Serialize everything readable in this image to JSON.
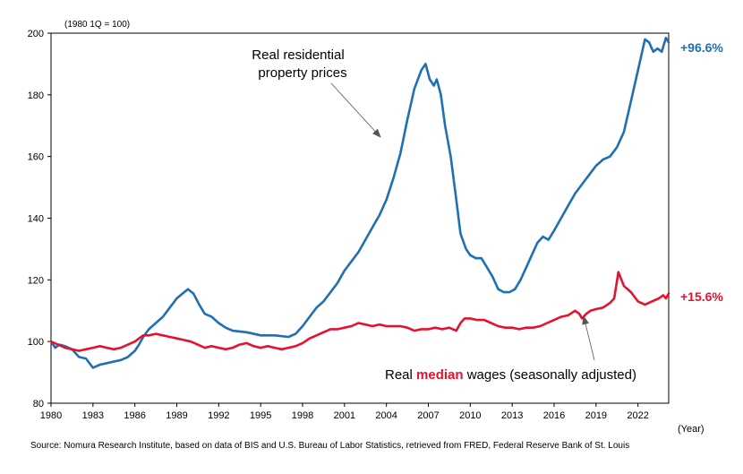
{
  "chart_data": {
    "type": "line",
    "unit_label": "(1980 1Q = 100)",
    "xlabel": "(Year)",
    "xlim": [
      1980,
      2024.2
    ],
    "ylim": [
      80,
      200
    ],
    "yticks": [
      80,
      100,
      120,
      140,
      160,
      180,
      200
    ],
    "xticks": [
      1980,
      1983,
      1986,
      1989,
      1992,
      1995,
      1998,
      2001,
      2004,
      2007,
      2010,
      2013,
      2016,
      2019,
      2022
    ],
    "series": [
      {
        "name": "Real residential property prices",
        "color": "#1f6fb5",
        "end_label": "+96.6%",
        "points": [
          [
            1980,
            100
          ],
          [
            1980.3,
            98
          ],
          [
            1980.6,
            99
          ],
          [
            1981,
            98.5
          ],
          [
            1981.5,
            97.5
          ],
          [
            1982,
            95
          ],
          [
            1982.5,
            94.5
          ],
          [
            1983,
            91.5
          ],
          [
            1983.5,
            92.5
          ],
          [
            1984,
            93
          ],
          [
            1984.5,
            93.5
          ],
          [
            1985,
            94
          ],
          [
            1985.5,
            95
          ],
          [
            1986,
            97
          ],
          [
            1986.3,
            99
          ],
          [
            1986.6,
            101.5
          ],
          [
            1987,
            104
          ],
          [
            1987.5,
            106
          ],
          [
            1988,
            108
          ],
          [
            1988.5,
            111
          ],
          [
            1989,
            114
          ],
          [
            1989.4,
            115.5
          ],
          [
            1989.8,
            117
          ],
          [
            1990.2,
            115.5
          ],
          [
            1990.6,
            112
          ],
          [
            1991,
            109
          ],
          [
            1991.5,
            108
          ],
          [
            1992,
            106
          ],
          [
            1992.5,
            104.5
          ],
          [
            1993,
            103.5
          ],
          [
            1994,
            103
          ],
          [
            1995,
            102
          ],
          [
            1996,
            102
          ],
          [
            1997,
            101.5
          ],
          [
            1997.5,
            102.5
          ],
          [
            1998,
            105
          ],
          [
            1998.5,
            108
          ],
          [
            1999,
            111
          ],
          [
            1999.5,
            113
          ],
          [
            2000,
            116
          ],
          [
            2000.5,
            119
          ],
          [
            2001,
            123
          ],
          [
            2001.5,
            126
          ],
          [
            2002,
            129
          ],
          [
            2002.5,
            133
          ],
          [
            2003,
            137
          ],
          [
            2003.5,
            141
          ],
          [
            2004,
            146
          ],
          [
            2004.5,
            153
          ],
          [
            2005,
            161
          ],
          [
            2005.5,
            172
          ],
          [
            2006,
            182
          ],
          [
            2006.5,
            188
          ],
          [
            2006.8,
            190
          ],
          [
            2007.1,
            185
          ],
          [
            2007.4,
            183
          ],
          [
            2007.6,
            185
          ],
          [
            2007.9,
            180
          ],
          [
            2008.2,
            170
          ],
          [
            2008.6,
            160
          ],
          [
            2009,
            146
          ],
          [
            2009.3,
            135
          ],
          [
            2009.7,
            130
          ],
          [
            2010,
            128
          ],
          [
            2010.4,
            127
          ],
          [
            2010.8,
            127
          ],
          [
            2011.2,
            124
          ],
          [
            2011.6,
            121
          ],
          [
            2012,
            117
          ],
          [
            2012.4,
            116
          ],
          [
            2012.8,
            116
          ],
          [
            2013.2,
            117
          ],
          [
            2013.6,
            120
          ],
          [
            2014,
            124
          ],
          [
            2014.4,
            128
          ],
          [
            2014.8,
            132
          ],
          [
            2015.2,
            134
          ],
          [
            2015.6,
            133
          ],
          [
            2016,
            136
          ],
          [
            2016.5,
            140
          ],
          [
            2017,
            144
          ],
          [
            2017.5,
            148
          ],
          [
            2018,
            151
          ],
          [
            2018.5,
            154
          ],
          [
            2019,
            157
          ],
          [
            2019.5,
            159
          ],
          [
            2020,
            160
          ],
          [
            2020.5,
            163
          ],
          [
            2021,
            168
          ],
          [
            2021.5,
            178
          ],
          [
            2022,
            188
          ],
          [
            2022.5,
            198
          ],
          [
            2022.8,
            197
          ],
          [
            2023.1,
            194
          ],
          [
            2023.4,
            195
          ],
          [
            2023.7,
            194
          ],
          [
            2024,
            198.5
          ],
          [
            2024.2,
            197
          ]
        ]
      },
      {
        "name": "Real median wages (seasonally adjusted)",
        "color": "#e8112d",
        "end_label": "+15.6%",
        "points": [
          [
            1980,
            100
          ],
          [
            1980.5,
            99
          ],
          [
            1981,
            98
          ],
          [
            1981.5,
            97.5
          ],
          [
            1982,
            97
          ],
          [
            1982.5,
            97.5
          ],
          [
            1983,
            98
          ],
          [
            1983.5,
            98.5
          ],
          [
            1984,
            98
          ],
          [
            1984.5,
            97.5
          ],
          [
            1985,
            98
          ],
          [
            1985.5,
            99
          ],
          [
            1986,
            100
          ],
          [
            1986.3,
            101
          ],
          [
            1986.6,
            102
          ],
          [
            1987,
            102
          ],
          [
            1987.5,
            102.5
          ],
          [
            1988,
            102
          ],
          [
            1988.5,
            101.5
          ],
          [
            1989,
            101
          ],
          [
            1989.5,
            100.5
          ],
          [
            1990,
            100
          ],
          [
            1990.5,
            99
          ],
          [
            1991,
            98
          ],
          [
            1991.5,
            98.5
          ],
          [
            1992,
            98
          ],
          [
            1992.5,
            97.5
          ],
          [
            1993,
            98
          ],
          [
            1993.5,
            99
          ],
          [
            1994,
            99.5
          ],
          [
            1994.5,
            98.5
          ],
          [
            1995,
            98
          ],
          [
            1995.5,
            98.5
          ],
          [
            1996,
            98
          ],
          [
            1996.5,
            97.5
          ],
          [
            1997,
            98
          ],
          [
            1997.5,
            98.5
          ],
          [
            1998,
            99.5
          ],
          [
            1998.5,
            101
          ],
          [
            1999,
            102
          ],
          [
            1999.5,
            103
          ],
          [
            2000,
            104
          ],
          [
            2000.5,
            104
          ],
          [
            2001,
            104.5
          ],
          [
            2001.5,
            105
          ],
          [
            2002,
            106
          ],
          [
            2002.5,
            105.5
          ],
          [
            2003,
            105
          ],
          [
            2003.5,
            105.5
          ],
          [
            2004,
            105
          ],
          [
            2004.5,
            105
          ],
          [
            2005,
            105
          ],
          [
            2005.5,
            104.5
          ],
          [
            2006,
            103.5
          ],
          [
            2006.5,
            104
          ],
          [
            2007,
            104
          ],
          [
            2007.5,
            104.5
          ],
          [
            2008,
            104
          ],
          [
            2008.5,
            104.5
          ],
          [
            2009,
            103.5
          ],
          [
            2009.3,
            106
          ],
          [
            2009.6,
            107.5
          ],
          [
            2010,
            107.5
          ],
          [
            2010.5,
            107
          ],
          [
            2011,
            107
          ],
          [
            2011.5,
            106
          ],
          [
            2012,
            105
          ],
          [
            2012.5,
            104.5
          ],
          [
            2013,
            104.5
          ],
          [
            2013.5,
            104
          ],
          [
            2014,
            104.5
          ],
          [
            2014.5,
            104.5
          ],
          [
            2015,
            105
          ],
          [
            2015.5,
            106
          ],
          [
            2016,
            107
          ],
          [
            2016.5,
            108
          ],
          [
            2017,
            108.5
          ],
          [
            2017.5,
            110
          ],
          [
            2017.8,
            109
          ],
          [
            2018,
            107.5
          ],
          [
            2018.3,
            109
          ],
          [
            2018.6,
            110
          ],
          [
            2019,
            110.5
          ],
          [
            2019.5,
            111
          ],
          [
            2020,
            112.5
          ],
          [
            2020.3,
            114
          ],
          [
            2020.6,
            122.5
          ],
          [
            2021,
            118
          ],
          [
            2021.5,
            116
          ],
          [
            2022,
            113
          ],
          [
            2022.5,
            112
          ],
          [
            2023,
            113
          ],
          [
            2023.5,
            114
          ],
          [
            2023.8,
            115
          ],
          [
            2024,
            114
          ],
          [
            2024.2,
            115.6
          ]
        ]
      }
    ],
    "annotations": {
      "property_line1": "Real residential",
      "property_line2": "property prices",
      "wages_prefix": "Real ",
      "wages_emphasis": "median",
      "wages_suffix": " wages (seasonally adjusted)",
      "wages_emphasis_color": "#e8112d"
    }
  },
  "source": "Source: Nomura Research Institute, based on data of BIS and U.S. Bureau of Labor Statistics, retrieved from FRED, Federal Reserve Bank of St. Louis"
}
